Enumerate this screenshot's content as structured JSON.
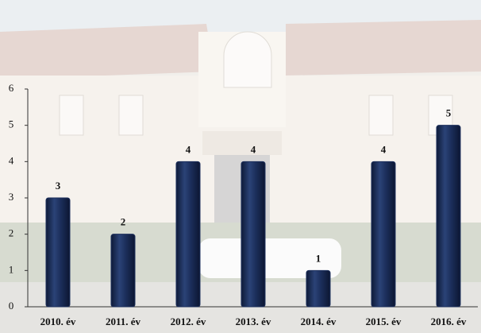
{
  "chart_data": {
    "type": "bar",
    "categories": [
      "2010. év",
      "2011. év",
      "2012. év",
      "2013. év",
      "2014. év",
      "2015. év",
      "2016. év"
    ],
    "values": [
      3,
      2,
      4,
      4,
      1,
      4,
      5
    ],
    "color": "#1c2f5c",
    "ylim": [
      0,
      6
    ],
    "yticks": [
      0,
      1,
      2,
      3,
      4,
      5,
      6
    ],
    "grid": false
  }
}
